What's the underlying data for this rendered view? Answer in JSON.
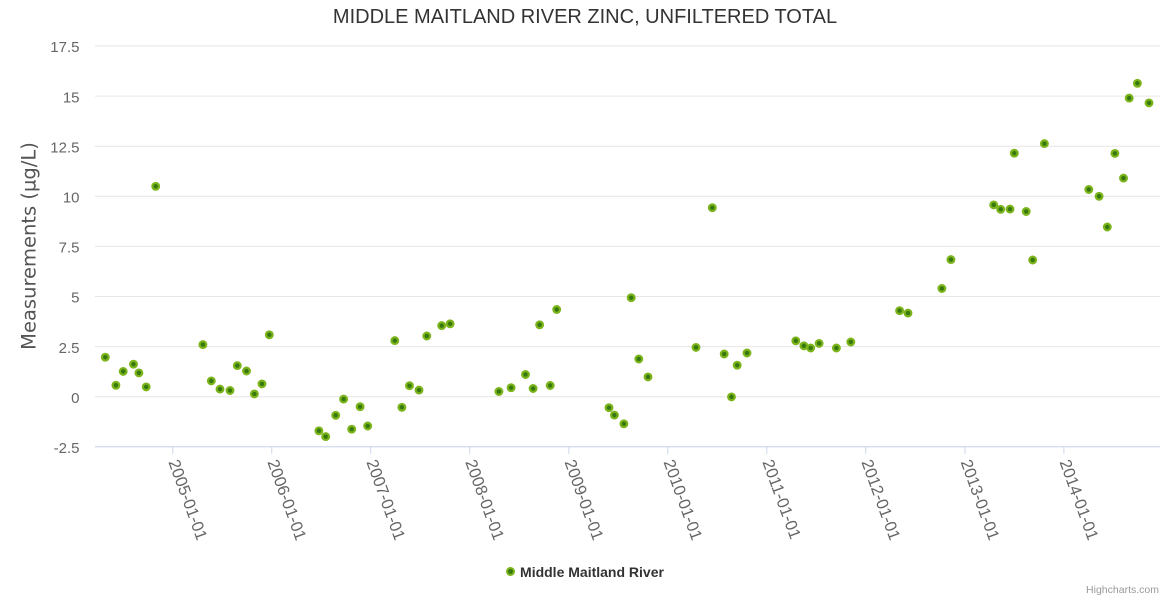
{
  "chart_data": {
    "type": "scatter",
    "title": "MIDDLE MAITLAND RIVER ZINC, UNFILTERED TOTAL",
    "xlabel": "",
    "ylabel": "Measurements (µg/L)",
    "ylim": [
      -2.5,
      17.5
    ],
    "y_ticks": [
      -2.5,
      0,
      2.5,
      5,
      7.5,
      10,
      12.5,
      15,
      17.5
    ],
    "y_tick_labels": [
      "-2.5",
      "0",
      "2.5",
      "5",
      "7.5",
      "10",
      "12.5",
      "15",
      "17.5"
    ],
    "x_ticks": [
      "2005-01-01",
      "2006-01-01",
      "2007-01-01",
      "2008-01-01",
      "2009-01-01",
      "2010-01-01",
      "2011-01-01",
      "2012-01-01",
      "2013-01-01",
      "2014-01-01"
    ],
    "grid": true,
    "legend_position": "bottom",
    "series": [
      {
        "name": "Middle Maitland River",
        "points": [
          {
            "date": "2004-04-27",
            "value": 1.97
          },
          {
            "date": "2004-06-05",
            "value": 0.57
          },
          {
            "date": "2004-07-02",
            "value": 1.26
          },
          {
            "date": "2004-08-09",
            "value": 1.62
          },
          {
            "date": "2004-08-29",
            "value": 1.19
          },
          {
            "date": "2004-09-25",
            "value": 0.49
          },
          {
            "date": "2004-10-30",
            "value": 10.5
          },
          {
            "date": "2005-04-22",
            "value": 2.6
          },
          {
            "date": "2005-05-23",
            "value": 0.79
          },
          {
            "date": "2005-06-24",
            "value": 0.38
          },
          {
            "date": "2005-07-31",
            "value": 0.31
          },
          {
            "date": "2005-08-27",
            "value": 1.55
          },
          {
            "date": "2005-09-30",
            "value": 1.28
          },
          {
            "date": "2005-10-29",
            "value": 0.14
          },
          {
            "date": "2005-11-26",
            "value": 0.64
          },
          {
            "date": "2005-12-23",
            "value": 3.09
          },
          {
            "date": "2006-06-24",
            "value": -1.7
          },
          {
            "date": "2006-07-19",
            "value": -1.99
          },
          {
            "date": "2006-08-25",
            "value": -0.93
          },
          {
            "date": "2006-09-23",
            "value": -0.12
          },
          {
            "date": "2006-10-23",
            "value": -1.62
          },
          {
            "date": "2006-11-23",
            "value": -0.5
          },
          {
            "date": "2006-12-21",
            "value": -1.46
          },
          {
            "date": "2007-03-31",
            "value": 2.8
          },
          {
            "date": "2007-04-26",
            "value": -0.53
          },
          {
            "date": "2007-05-24",
            "value": 0.55
          },
          {
            "date": "2007-06-28",
            "value": 0.33
          },
          {
            "date": "2007-07-27",
            "value": 3.03
          },
          {
            "date": "2007-09-20",
            "value": 3.55
          },
          {
            "date": "2007-10-21",
            "value": 3.64
          },
          {
            "date": "2008-04-18",
            "value": 0.26
          },
          {
            "date": "2008-06-02",
            "value": 0.45
          },
          {
            "date": "2008-07-25",
            "value": 1.11
          },
          {
            "date": "2008-08-22",
            "value": 0.41
          },
          {
            "date": "2008-09-15",
            "value": 3.59
          },
          {
            "date": "2008-10-24",
            "value": 0.56
          },
          {
            "date": "2008-11-17",
            "value": 4.35
          },
          {
            "date": "2009-05-29",
            "value": -0.55
          },
          {
            "date": "2009-06-18",
            "value": -0.92
          },
          {
            "date": "2009-07-23",
            "value": -1.35
          },
          {
            "date": "2009-08-19",
            "value": 4.94
          },
          {
            "date": "2009-09-16",
            "value": 1.88
          },
          {
            "date": "2009-10-20",
            "value": 0.99
          },
          {
            "date": "2010-04-15",
            "value": 2.46
          },
          {
            "date": "2010-06-14",
            "value": 9.43
          },
          {
            "date": "2010-07-28",
            "value": 2.13
          },
          {
            "date": "2010-08-24",
            "value": -0.01
          },
          {
            "date": "2010-09-14",
            "value": 1.57
          },
          {
            "date": "2010-10-20",
            "value": 2.18
          },
          {
            "date": "2011-04-18",
            "value": 2.79
          },
          {
            "date": "2011-05-18",
            "value": 2.54
          },
          {
            "date": "2011-06-12",
            "value": 2.43
          },
          {
            "date": "2011-07-13",
            "value": 2.66
          },
          {
            "date": "2011-09-15",
            "value": 2.43
          },
          {
            "date": "2011-11-07",
            "value": 2.73
          },
          {
            "date": "2012-05-05",
            "value": 4.29
          },
          {
            "date": "2012-06-05",
            "value": 4.17
          },
          {
            "date": "2012-10-08",
            "value": 5.4
          },
          {
            "date": "2012-11-10",
            "value": 6.84
          },
          {
            "date": "2013-04-17",
            "value": 9.57
          },
          {
            "date": "2013-05-13",
            "value": 9.35
          },
          {
            "date": "2013-06-16",
            "value": 9.36
          },
          {
            "date": "2013-07-02",
            "value": 12.15
          },
          {
            "date": "2013-08-15",
            "value": 9.24
          },
          {
            "date": "2013-09-08",
            "value": 6.82
          },
          {
            "date": "2013-10-21",
            "value": 12.63
          },
          {
            "date": "2014-04-03",
            "value": 10.34
          },
          {
            "date": "2014-05-11",
            "value": 10.0
          },
          {
            "date": "2014-06-10",
            "value": 8.47
          },
          {
            "date": "2014-07-08",
            "value": 12.14
          },
          {
            "date": "2014-08-09",
            "value": 10.91
          },
          {
            "date": "2014-08-30",
            "value": 14.9
          },
          {
            "date": "2014-09-29",
            "value": 15.64
          },
          {
            "date": "2014-11-11",
            "value": 14.66
          }
        ]
      }
    ]
  },
  "colors": {
    "marker_ring": "#7cb41c",
    "marker_core": "#37790f",
    "grid_line": "#e6e6e6",
    "axis_line": "#ccd6eb",
    "title_text": "#333333",
    "axis_label_text": "#666666",
    "axis_title_text": "#555555",
    "legend_text": "#333333",
    "credits_text": "#999999",
    "background": "#ffffff"
  },
  "credits": {
    "label": "Highcharts.com"
  }
}
